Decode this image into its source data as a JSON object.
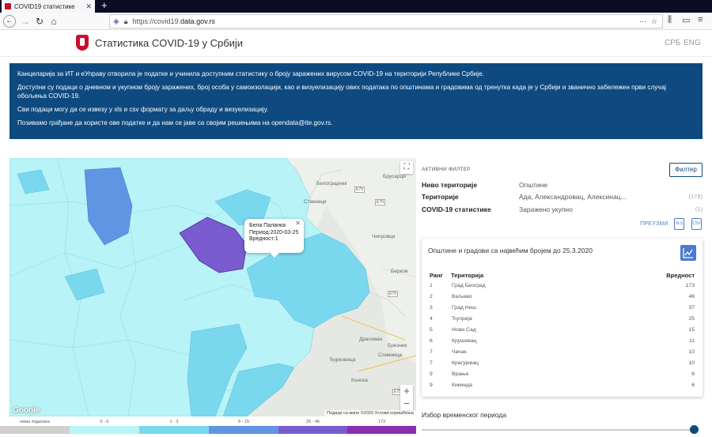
{
  "browser": {
    "tab_title": "COVID19 статистике",
    "url_prefix": "https://covid19.",
    "url_domain": "data.gov.rs"
  },
  "header": {
    "title": "Статистика COVID-19 у Србији",
    "lang_srb": "СРБ",
    "lang_eng": "ENG"
  },
  "info": {
    "p1": "Канцеларија за ИТ и еУправу отворила је податке и учинила доступним статистику о броју заражених вирусом COVID-19 на територији Републике Србије.",
    "p2": "Доступни су подаци о дневном и укупном броју заражених, број особа у самоизолацији, као и визуелизацију ових података по општинама и градовима од тренутка када је у Србији и званично забележен први случај обољења COVID-19.",
    "p3": "Сви подаци могу да се извезу у xls и csv формату за даљу обраду и визуелизацију.",
    "p4": "Позивамо грађане да користе ове податке и да нам се јаве са својим решењима на opendata@ite.gov.rs."
  },
  "map": {
    "popup_line1": "Бела Паланка",
    "popup_line2": "Период:2020-03-25",
    "popup_line3": "Вредност:1",
    "google": "Google",
    "attribution": "Подаци са мапе ©2020   Услови коришћења",
    "cities": [
      "Белоградчик",
      "Брусарци",
      "Стакевци",
      "Чипровци",
      "Берков",
      "Драгоман",
      "Брезник",
      "Сливница",
      "Ђурковица",
      "Конска"
    ],
    "shields": [
      "E79",
      "E79",
      "E79",
      "E79"
    ]
  },
  "legend": [
    {
      "label": "нема података",
      "color": "#d0d0d0"
    },
    {
      "label": "0 - 0",
      "color": "#b7f3f7"
    },
    {
      "label": "1 - 3",
      "color": "#7ad8ee"
    },
    {
      "label": "6 - 15",
      "color": "#5f95e2"
    },
    {
      "label": "25 - 46",
      "color": "#7a5cd0"
    },
    {
      "label": "173",
      "color": "#8a2fb0"
    }
  ],
  "filter": {
    "heading": "АКТИВНИ ФИЛТЕР",
    "button": "Филтер",
    "rows": [
      {
        "key": "Ниво територије",
        "value": "Општине",
        "count": ""
      },
      {
        "key": "Територије",
        "value": "Ада, Александровац, Алексинац...",
        "count": "(178)"
      },
      {
        "key": "COVID-19 статистике",
        "value": "Заражено укупно",
        "count": "(1)"
      }
    ],
    "download": "ПРЕУЗМИ",
    "xls": "XLS",
    "csv": "CSV"
  },
  "top_card": {
    "title": "Општине и градови са највећим бројем до 25.3.2020",
    "headers": {
      "rank": "Ранг",
      "territory": "Територија",
      "value": "Вредност"
    },
    "rows": [
      {
        "rank": "1",
        "territory": "Град Београд",
        "value": "173"
      },
      {
        "rank": "2",
        "territory": "Ваљево",
        "value": "46"
      },
      {
        "rank": "3",
        "territory": "Град Ниш",
        "value": "37"
      },
      {
        "rank": "4",
        "territory": "Ћуприја",
        "value": "25"
      },
      {
        "rank": "5",
        "territory": "Нови Сад",
        "value": "15"
      },
      {
        "rank": "6",
        "territory": "Крушевац",
        "value": "11"
      },
      {
        "rank": "7",
        "territory": "Чачак",
        "value": "10"
      },
      {
        "rank": "7",
        "territory": "Крагујевац",
        "value": "10"
      },
      {
        "rank": "9",
        "territory": "Врање",
        "value": "6"
      },
      {
        "rank": "9",
        "territory": "Кикинда",
        "value": "6"
      }
    ]
  },
  "period": {
    "title": "Избор временског периода",
    "slider_value_fraction": 1.0
  }
}
